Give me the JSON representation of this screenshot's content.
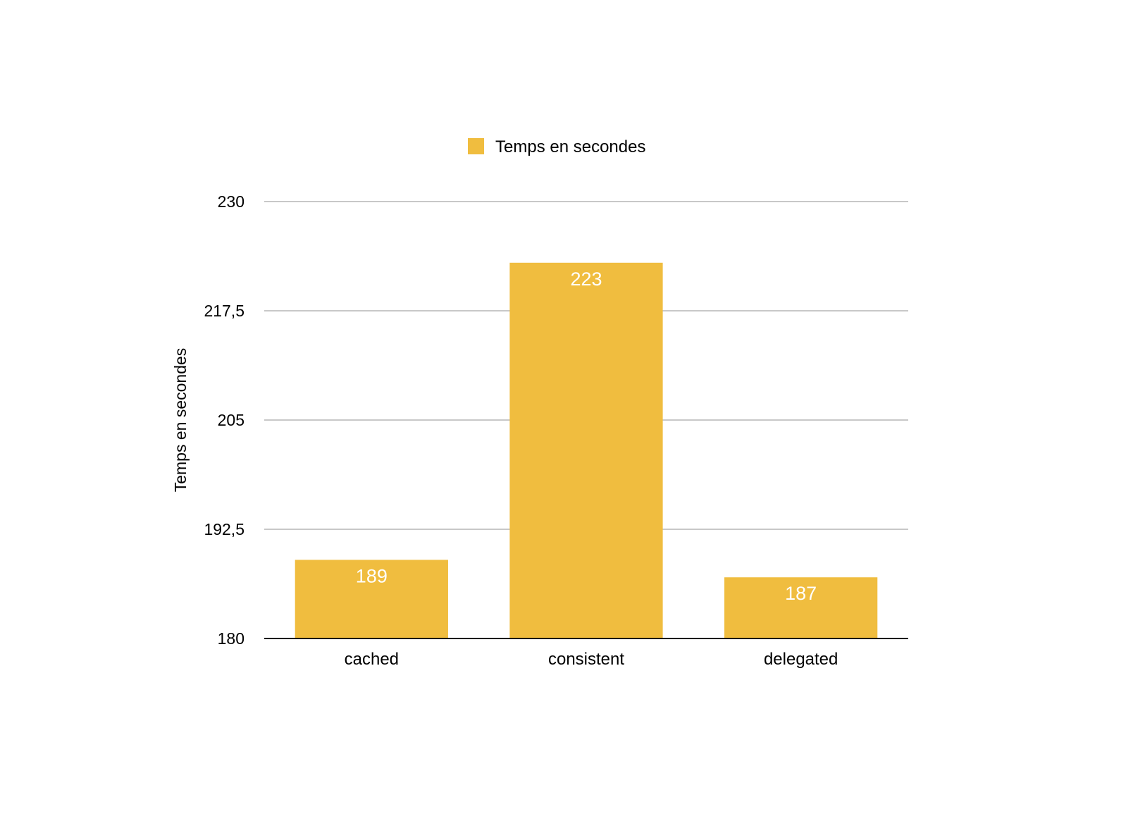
{
  "chart_data": {
    "type": "bar",
    "categories": [
      "cached",
      "consistent",
      "delegated"
    ],
    "series": [
      {
        "name": "Temps en secondes",
        "values": [
          189,
          223,
          187
        ],
        "color": "#F0BD3F"
      }
    ],
    "value_labels": [
      "189",
      "223",
      "187"
    ],
    "ylabel": "Temps en secondes",
    "xlabel": "",
    "ylim": [
      180,
      230
    ],
    "yticks": [
      180,
      192.5,
      205,
      217.5,
      230
    ],
    "ytick_labels": [
      "180",
      "192,5",
      "205",
      "217,5",
      "230"
    ],
    "grid": true,
    "legend": "top-center",
    "colors": {
      "bar": "#F0BD3F",
      "grid": "#C8C8C8",
      "axis": "#000000",
      "data_label": "#FFFFFF"
    }
  }
}
